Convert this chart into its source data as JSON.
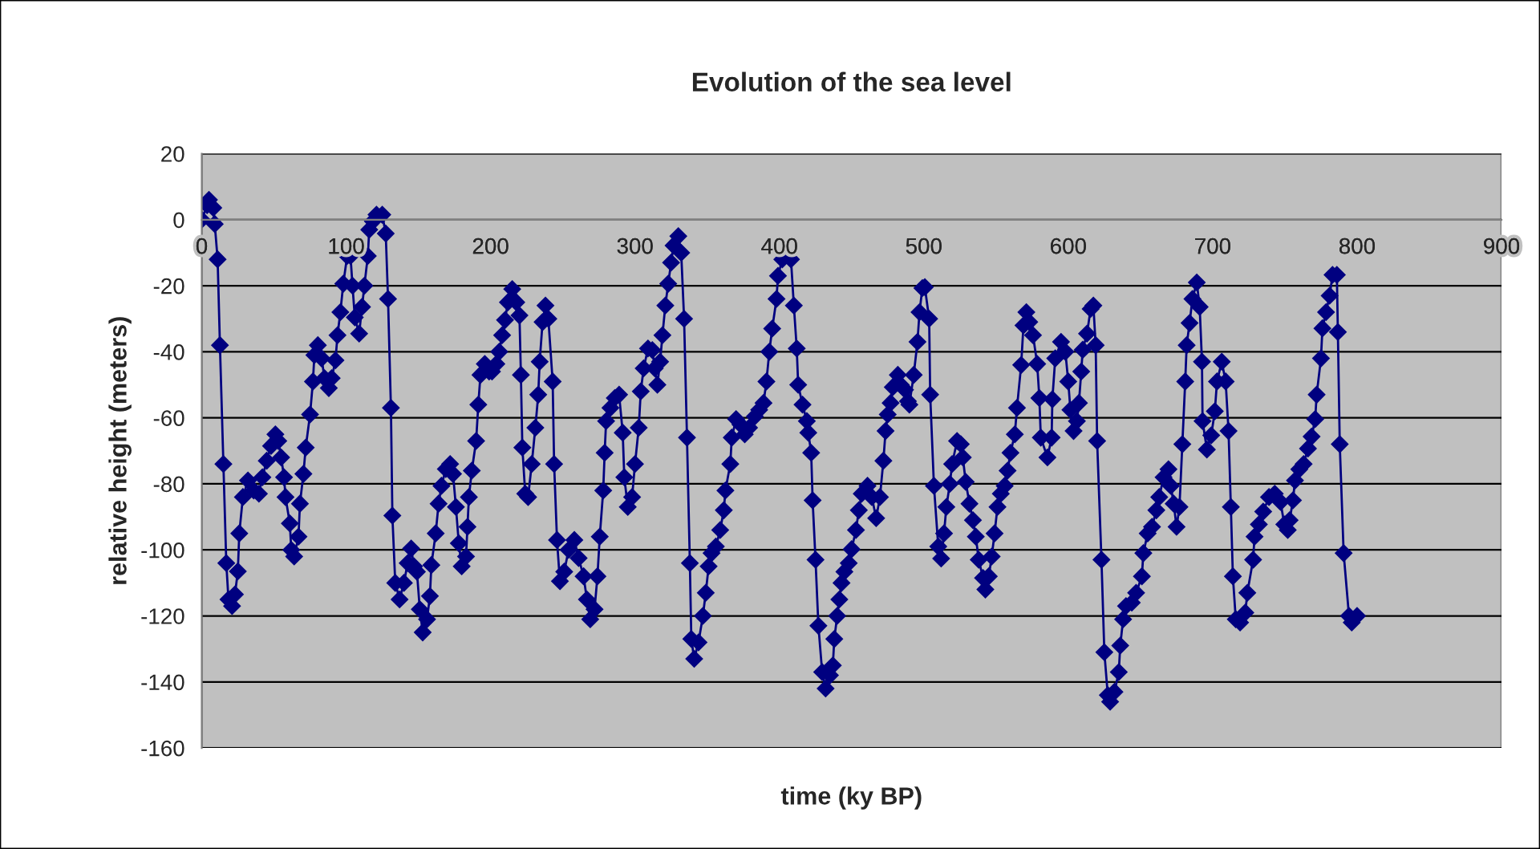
{
  "chart_data": {
    "type": "line",
    "title": "Evolution of the sea level",
    "xlabel": "time (ky BP)",
    "ylabel": "relative height (meters)",
    "xlim": [
      0,
      900
    ],
    "xticks": [
      0,
      100,
      200,
      300,
      400,
      500,
      600,
      700,
      800,
      900
    ],
    "ylim": [
      -160,
      20
    ],
    "yticks": [
      20,
      0,
      -20,
      -40,
      -60,
      -80,
      -100,
      -120,
      -140,
      -160
    ],
    "grid": "y",
    "marker": "diamond",
    "line_style": "solid",
    "series": [
      {
        "color": "#000080",
        "x": [
          0,
          3.7,
          5,
          8,
          9,
          11,
          12.6,
          15,
          17,
          18.5,
          21,
          23,
          25,
          26,
          28.5,
          32,
          36,
          39.6,
          42,
          45,
          48,
          51,
          53,
          55,
          57,
          58,
          61,
          62,
          64,
          67,
          68,
          70.4,
          72,
          75,
          77,
          78,
          80.4,
          83,
          85,
          88,
          90,
          92.6,
          94,
          96,
          98,
          100.7,
          103,
          104.4,
          106,
          109,
          111,
          112.6,
          115,
          116,
          118.5,
          121,
          125,
          127.4,
          129,
          131,
          132,
          134,
          137,
          140,
          142.6,
          145,
          147,
          149,
          151,
          153,
          156,
          158,
          159,
          162,
          164,
          166,
          169,
          172,
          174,
          176,
          178,
          180,
          183,
          184,
          185,
          187,
          190,
          191.5,
          193,
          196,
          199,
          201,
          204,
          206,
          208,
          210,
          212,
          215,
          217.8,
          220,
          221,
          222,
          224,
          226,
          228.5,
          231,
          233,
          234,
          236,
          238,
          240,
          243,
          244,
          246,
          248,
          251,
          254,
          258,
          261,
          264.4,
          266.7,
          269,
          272,
          274,
          275.6,
          278,
          279,
          280,
          283,
          286,
          289,
          291.5,
          292.6,
          295,
          298,
          300,
          302.6,
          304,
          306,
          309,
          312,
          313.7,
          315.5,
          317.4,
          319,
          321,
          323,
          325,
          326.7,
          330,
          332,
          334,
          336,
          338,
          339,
          341,
          344,
          347,
          349,
          351,
          353,
          356,
          359,
          361.5,
          362.6,
          366,
          367,
          370,
          373,
          376,
          379,
          383,
          386,
          389,
          391,
          393,
          395,
          398,
          399,
          402,
          405,
          408,
          410,
          412,
          413,
          416,
          419,
          420,
          422,
          423,
          425,
          427,
          429.6,
          432,
          435,
          437,
          438,
          440,
          441.5,
          443,
          445,
          448,
          450,
          453,
          455,
          457,
          461,
          464,
          467,
          469.6,
          472,
          473.5,
          475,
          477,
          478.5,
          482,
          484,
          487,
          489,
          490,
          493,
          495.6,
          497,
          499,
          500.7,
          503.7,
          504.4,
          507,
          510,
          512,
          514,
          515.6,
          518,
          519.6,
          523,
          525.6,
          527,
          529,
          531.6,
          534,
          536,
          538,
          541,
          542.6,
          545,
          547,
          549,
          551,
          553.3,
          556,
          558,
          560,
          563,
          564.5,
          567.4,
          569,
          571,
          573,
          575.6,
          578.5,
          580,
          581,
          585.6,
          588.5,
          589,
          591,
          595,
          598,
          600,
          601.5,
          603.7,
          606,
          607.4,
          609,
          610,
          613,
          615.5,
          617.4,
          619,
          620,
          623,
          625,
          627.4,
          629,
          632,
          635,
          636,
          638,
          640,
          644,
          647,
          651,
          652,
          655,
          658,
          661,
          663,
          666,
          669.4,
          671,
          673,
          675,
          677,
          679,
          681,
          682,
          684,
          686,
          689,
          691,
          692.6,
          693,
          696,
          699,
          701.5,
          703,
          706.3,
          709,
          711,
          712.6,
          714,
          716,
          719,
          722.6,
          724,
          728,
          729,
          732,
          735,
          739,
          743,
          747,
          749.6,
          752,
          753.3,
          755.6,
          757,
          760,
          763,
          766,
          768.5,
          771,
          772,
          775,
          776,
          778.5,
          781,
          783,
          786,
          786.7,
          788,
          790.7,
          794.4,
          796.3,
          800
        ],
        "values": [
          0,
          4.4,
          6,
          3.6,
          -1.3,
          -12,
          -38,
          -74,
          -104,
          -115,
          -117,
          -113.5,
          -106.5,
          -95,
          -84,
          -79,
          -82,
          -83,
          -78,
          -73,
          -68.5,
          -65,
          -67,
          -72,
          -78,
          -84,
          -92,
          -100,
          -102,
          -96,
          -86,
          -77,
          -69,
          -59,
          -49,
          -41,
          -38,
          -42,
          -48,
          -51,
          -48,
          -42.6,
          -35,
          -28,
          -19.4,
          -11,
          -11,
          -20,
          -29.6,
          -34.5,
          -26.4,
          -20,
          -11,
          -3,
          -0.5,
          1.5,
          1.5,
          -4.2,
          -24,
          -57,
          -89.6,
          -110,
          -115,
          -110,
          -104,
          -99.6,
          -105,
          -106.6,
          -118,
          -125,
          -121,
          -114,
          -104.6,
          -95,
          -86,
          -80.6,
          -75.5,
          -74,
          -77,
          -87,
          -98,
          -105,
          -102,
          -93,
          -84,
          -76,
          -67,
          -56,
          -47,
          -43.7,
          -46,
          -46,
          -43.7,
          -40,
          -35,
          -30.4,
          -25,
          -21,
          -25,
          -29,
          -47,
          -69,
          -83,
          -84,
          -74,
          -63,
          -53,
          -43,
          -31,
          -26,
          -30,
          -49,
          -74,
          -97,
          -109.5,
          -106.6,
          -100,
          -97,
          -102.5,
          -108,
          -115,
          -121,
          -118,
          -108,
          -96,
          -82,
          -70.6,
          -61,
          -57,
          -54,
          -53,
          -64.5,
          -78,
          -87,
          -84,
          -74,
          -63,
          -52,
          -45,
          -39,
          -39.5,
          -45,
          -50,
          -43,
          -35,
          -26,
          -19.4,
          -13,
          -7.8,
          -5,
          -10,
          -30,
          -66,
          -104,
          -127,
          -133,
          -128,
          -120,
          -113,
          -105,
          -101,
          -99,
          -94,
          -88,
          -82,
          -74,
          -66,
          -60.4,
          -62,
          -65,
          -63,
          -59.6,
          -57.6,
          -55.5,
          -49,
          -40,
          -33,
          -24,
          -17,
          -12,
          -10,
          -12,
          -26,
          -39,
          -50,
          -56,
          -61,
          -64.5,
          -70.6,
          -85,
          -103,
          -123,
          -137,
          -142,
          -138,
          -135,
          -127,
          -120,
          -115,
          -110,
          -106.6,
          -104,
          -99.8,
          -94,
          -88,
          -83,
          -80.6,
          -84,
          -90.4,
          -84,
          -73,
          -64,
          -59,
          -55.5,
          -50.7,
          -47,
          -50,
          -51.5,
          -55,
          -56,
          -47,
          -37,
          -28,
          -20.7,
          -20.4,
          -30,
          -53,
          -80.6,
          -99,
          -102.6,
          -95,
          -87,
          -80,
          -74,
          -67,
          -68,
          -72,
          -79.4,
          -86,
          -91,
          -96,
          -103,
          -108.5,
          -112,
          -108,
          -102,
          -95,
          -87,
          -83,
          -80.6,
          -76,
          -70.6,
          -65,
          -57,
          -44,
          -32,
          -28,
          -31,
          -35,
          -43.7,
          -54,
          -66,
          -72,
          -66,
          -54.4,
          -42,
          -37,
          -40,
          -49,
          -57.6,
          -64,
          -61,
          -55.5,
          -46,
          -39.4,
          -34.5,
          -27,
          -26,
          -38,
          -67,
          -103,
          -131,
          -144,
          -146,
          -143,
          -137,
          -129,
          -121,
          -117,
          -116,
          -113,
          -108,
          -101,
          -95,
          -93,
          -88,
          -84,
          -78,
          -75.6,
          -80.6,
          -86,
          -93,
          -87,
          -68,
          -49,
          -38,
          -31.3,
          -24,
          -19,
          -26.4,
          -43,
          -61,
          -69.6,
          -65.3,
          -58,
          -49,
          -43,
          -49,
          -64,
          -87,
          -108,
          -121,
          -122,
          -119,
          -113,
          -103,
          -96,
          -92.3,
          -88.4,
          -84,
          -83,
          -85.5,
          -92.3,
          -94,
          -91,
          -85,
          -79,
          -75.6,
          -74,
          -69.3,
          -65.7,
          -60.4,
          -53,
          -42,
          -32.9,
          -28,
          -23,
          -16.7,
          -16.7,
          -34,
          -68,
          -101,
          -120,
          -122,
          -120
        ]
      }
    ]
  }
}
